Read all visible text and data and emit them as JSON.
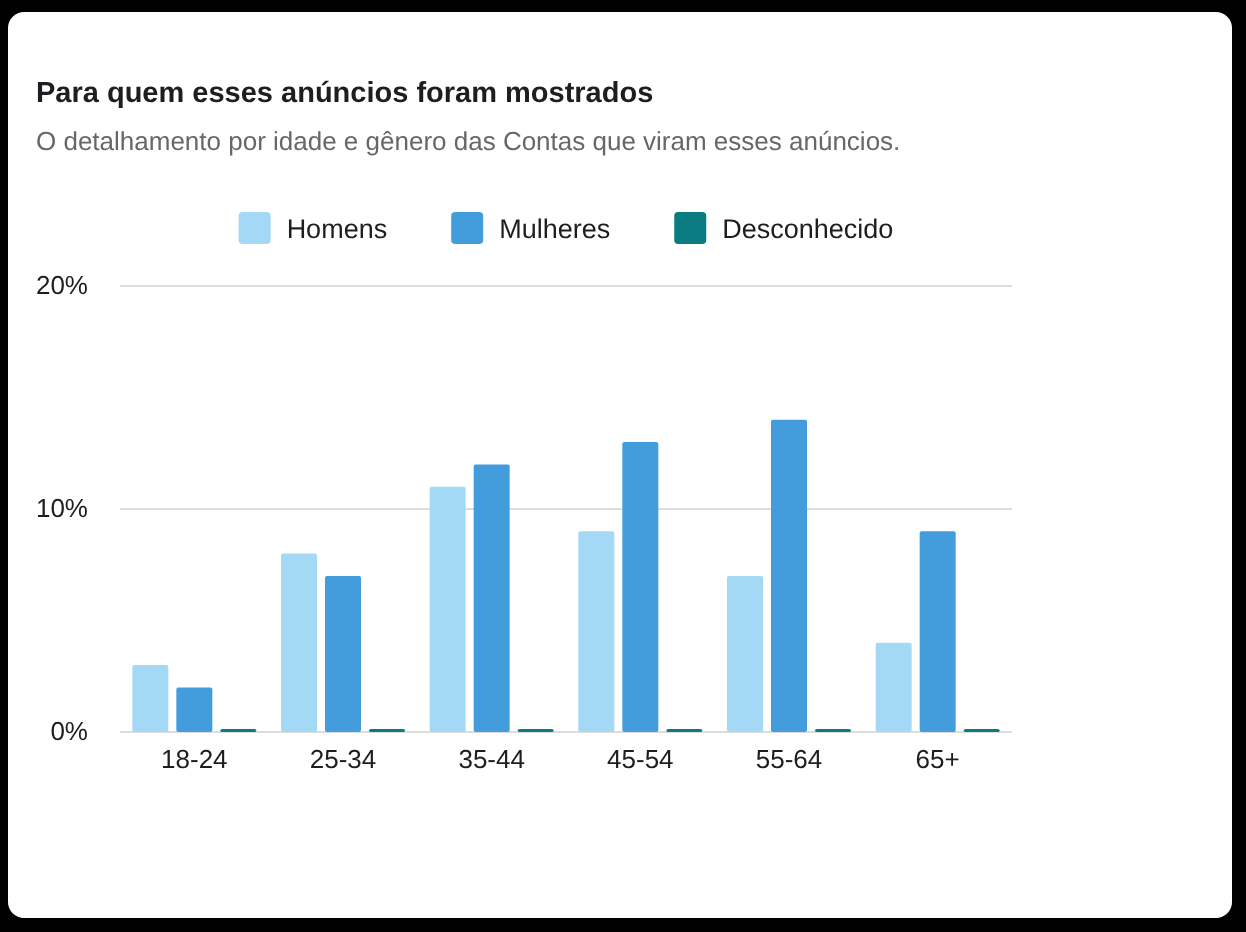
{
  "chart_data": {
    "type": "bar",
    "title": "Para quem esses anúncios foram mostrados",
    "subtitle": "O detalhamento por idade e gênero das Contas que viram esses anúncios.",
    "categories": [
      "18-24",
      "25-34",
      "35-44",
      "45-54",
      "55-64",
      "65+"
    ],
    "series": [
      {
        "name": "Homens",
        "color": "#a3d9f5",
        "values": [
          3,
          8,
          11,
          9,
          7,
          4
        ]
      },
      {
        "name": "Mulheres",
        "color": "#439cdb",
        "values": [
          2,
          7,
          12,
          13,
          14,
          9
        ]
      },
      {
        "name": "Desconhecido",
        "color": "#0a7b80",
        "values": [
          0.1,
          0.1,
          0.1,
          0.1,
          0.1,
          0.1
        ]
      }
    ],
    "ylim": [
      0,
      20
    ],
    "yticks": [
      {
        "value": 0,
        "label": "0%"
      },
      {
        "value": 10,
        "label": "10%"
      },
      {
        "value": 20,
        "label": "20%"
      }
    ],
    "grid": "y",
    "legend": "top"
  }
}
